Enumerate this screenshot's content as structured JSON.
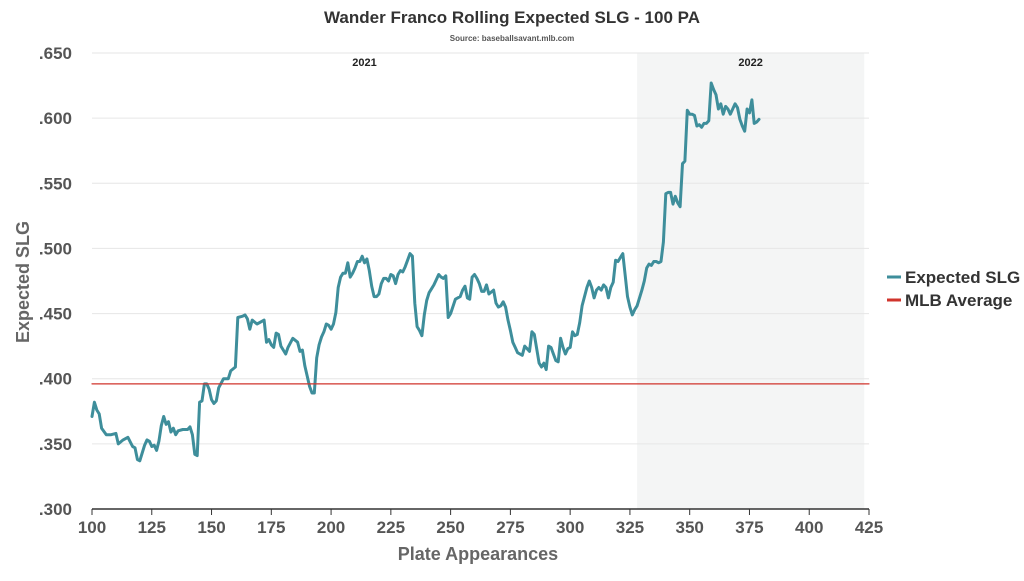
{
  "chart_data": {
    "type": "line",
    "title": "Wander Franco Rolling Expected SLG - 100 PA",
    "subtitle": "Source: baseballsavant.mlb.com",
    "xlabel": "Plate Appearances",
    "ylabel": "Expected SLG",
    "xlim": [
      100,
      425
    ],
    "ylim": [
      0.3,
      0.65
    ],
    "x_ticks": [
      100,
      125,
      150,
      175,
      200,
      225,
      250,
      275,
      300,
      325,
      350,
      375,
      400,
      425
    ],
    "x_tick_labels": [
      "100",
      "125",
      "150",
      "175",
      "200",
      "225",
      "250",
      "275",
      "300",
      "325",
      "350",
      "375",
      "400",
      "425"
    ],
    "y_ticks": [
      0.3,
      0.35,
      0.4,
      0.45,
      0.5,
      0.55,
      0.6,
      0.65
    ],
    "y_tick_labels": [
      ".300",
      ".350",
      ".400",
      ".450",
      ".500",
      ".550",
      ".600",
      ".650"
    ],
    "grid": true,
    "legend": "right",
    "seasons": [
      {
        "label": "2021",
        "start": 100,
        "end": 328,
        "shaded": false
      },
      {
        "label": "2022",
        "start": 328,
        "end": 423,
        "shaded": true
      }
    ],
    "series": [
      {
        "name": "Expected SLG",
        "color": "#3e8e9b",
        "points": [
          [
            100,
            0.371
          ],
          [
            101,
            0.382
          ],
          [
            102,
            0.376
          ],
          [
            103,
            0.373
          ],
          [
            104,
            0.362
          ],
          [
            106,
            0.357
          ],
          [
            108,
            0.357
          ],
          [
            110,
            0.358
          ],
          [
            111,
            0.35
          ],
          [
            113,
            0.353
          ],
          [
            115,
            0.355
          ],
          [
            117,
            0.348
          ],
          [
            118,
            0.347
          ],
          [
            119,
            0.338
          ],
          [
            120,
            0.337
          ],
          [
            122,
            0.349
          ],
          [
            123,
            0.353
          ],
          [
            124,
            0.352
          ],
          [
            125,
            0.348
          ],
          [
            126,
            0.349
          ],
          [
            127,
            0.345
          ],
          [
            128,
            0.352
          ],
          [
            129,
            0.364
          ],
          [
            130,
            0.371
          ],
          [
            131,
            0.365
          ],
          [
            132,
            0.367
          ],
          [
            133,
            0.359
          ],
          [
            134,
            0.362
          ],
          [
            135,
            0.357
          ],
          [
            136,
            0.36
          ],
          [
            138,
            0.361
          ],
          [
            140,
            0.361
          ],
          [
            141,
            0.363
          ],
          [
            142,
            0.357
          ],
          [
            143,
            0.342
          ],
          [
            144,
            0.341
          ],
          [
            145,
            0.382
          ],
          [
            146,
            0.383
          ],
          [
            147,
            0.396
          ],
          [
            148,
            0.396
          ],
          [
            149,
            0.392
          ],
          [
            150,
            0.384
          ],
          [
            151,
            0.381
          ],
          [
            152,
            0.383
          ],
          [
            153,
            0.393
          ],
          [
            155,
            0.4
          ],
          [
            157,
            0.4
          ],
          [
            158,
            0.406
          ],
          [
            160,
            0.409
          ],
          [
            161,
            0.447
          ],
          [
            163,
            0.448
          ],
          [
            164,
            0.449
          ],
          [
            165,
            0.446
          ],
          [
            166,
            0.438
          ],
          [
            167,
            0.445
          ],
          [
            169,
            0.442
          ],
          [
            171,
            0.444
          ],
          [
            172,
            0.445
          ],
          [
            173,
            0.428
          ],
          [
            174,
            0.43
          ],
          [
            175,
            0.426
          ],
          [
            176,
            0.424
          ],
          [
            177,
            0.435
          ],
          [
            178,
            0.434
          ],
          [
            179,
            0.425
          ],
          [
            181,
            0.419
          ],
          [
            182,
            0.424
          ],
          [
            184,
            0.431
          ],
          [
            186,
            0.428
          ],
          [
            187,
            0.421
          ],
          [
            188,
            0.422
          ],
          [
            189,
            0.41
          ],
          [
            190,
            0.402
          ],
          [
            191,
            0.394
          ],
          [
            192,
            0.389
          ],
          [
            193,
            0.389
          ],
          [
            194,
            0.416
          ],
          [
            195,
            0.426
          ],
          [
            196,
            0.432
          ],
          [
            197,
            0.436
          ],
          [
            198,
            0.442
          ],
          [
            199,
            0.441
          ],
          [
            200,
            0.438
          ],
          [
            201,
            0.442
          ],
          [
            202,
            0.451
          ],
          [
            203,
            0.47
          ],
          [
            204,
            0.478
          ],
          [
            205,
            0.481
          ],
          [
            206,
            0.481
          ],
          [
            207,
            0.489
          ],
          [
            208,
            0.478
          ],
          [
            209,
            0.481
          ],
          [
            210,
            0.485
          ],
          [
            211,
            0.49
          ],
          [
            212,
            0.49
          ],
          [
            213,
            0.494
          ],
          [
            214,
            0.489
          ],
          [
            215,
            0.492
          ],
          [
            216,
            0.483
          ],
          [
            217,
            0.471
          ],
          [
            218,
            0.463
          ],
          [
            219,
            0.463
          ],
          [
            220,
            0.465
          ],
          [
            221,
            0.473
          ],
          [
            222,
            0.477
          ],
          [
            223,
            0.477
          ],
          [
            224,
            0.475
          ],
          [
            225,
            0.48
          ],
          [
            226,
            0.479
          ],
          [
            227,
            0.473
          ],
          [
            228,
            0.48
          ],
          [
            229,
            0.483
          ],
          [
            230,
            0.482
          ],
          [
            231,
            0.486
          ],
          [
            232,
            0.491
          ],
          [
            233,
            0.496
          ],
          [
            234,
            0.494
          ],
          [
            235,
            0.458
          ],
          [
            236,
            0.44
          ],
          [
            237,
            0.437
          ],
          [
            238,
            0.433
          ],
          [
            239,
            0.449
          ],
          [
            240,
            0.46
          ],
          [
            241,
            0.466
          ],
          [
            242,
            0.469
          ],
          [
            243,
            0.472
          ],
          [
            244,
            0.476
          ],
          [
            245,
            0.48
          ],
          [
            246,
            0.478
          ],
          [
            247,
            0.477
          ],
          [
            248,
            0.479
          ],
          [
            249,
            0.447
          ],
          [
            250,
            0.45
          ],
          [
            252,
            0.461
          ],
          [
            254,
            0.463
          ],
          [
            255,
            0.468
          ],
          [
            256,
            0.471
          ],
          [
            257,
            0.462
          ],
          [
            258,
            0.461
          ],
          [
            259,
            0.478
          ],
          [
            260,
            0.48
          ],
          [
            261,
            0.477
          ],
          [
            262,
            0.473
          ],
          [
            263,
            0.467
          ],
          [
            264,
            0.467
          ],
          [
            265,
            0.472
          ],
          [
            266,
            0.465
          ],
          [
            268,
            0.468
          ],
          [
            269,
            0.458
          ],
          [
            270,
            0.455
          ],
          [
            271,
            0.456
          ],
          [
            272,
            0.459
          ],
          [
            273,
            0.455
          ],
          [
            274,
            0.445
          ],
          [
            275,
            0.437
          ],
          [
            276,
            0.428
          ],
          [
            277,
            0.424
          ],
          [
            278,
            0.42
          ],
          [
            280,
            0.418
          ],
          [
            281,
            0.425
          ],
          [
            282,
            0.423
          ],
          [
            283,
            0.421
          ],
          [
            284,
            0.436
          ],
          [
            285,
            0.434
          ],
          [
            286,
            0.423
          ],
          [
            287,
            0.412
          ],
          [
            288,
            0.409
          ],
          [
            289,
            0.412
          ],
          [
            290,
            0.407
          ],
          [
            291,
            0.425
          ],
          [
            292,
            0.424
          ],
          [
            293,
            0.419
          ],
          [
            294,
            0.414
          ],
          [
            295,
            0.413
          ],
          [
            296,
            0.431
          ],
          [
            297,
            0.424
          ],
          [
            298,
            0.419
          ],
          [
            299,
            0.423
          ],
          [
            300,
            0.424
          ],
          [
            301,
            0.436
          ],
          [
            302,
            0.433
          ],
          [
            303,
            0.434
          ],
          [
            304,
            0.443
          ],
          [
            305,
            0.456
          ],
          [
            306,
            0.463
          ],
          [
            307,
            0.47
          ],
          [
            308,
            0.475
          ],
          [
            309,
            0.47
          ],
          [
            310,
            0.462
          ],
          [
            311,
            0.468
          ],
          [
            312,
            0.47
          ],
          [
            313,
            0.468
          ],
          [
            314,
            0.472
          ],
          [
            315,
            0.47
          ],
          [
            316,
            0.462
          ],
          [
            317,
            0.47
          ],
          [
            318,
            0.474
          ],
          [
            319,
            0.491
          ],
          [
            320,
            0.49
          ],
          [
            321,
            0.493
          ],
          [
            322,
            0.496
          ],
          [
            323,
            0.48
          ],
          [
            324,
            0.463
          ],
          [
            325,
            0.455
          ],
          [
            326,
            0.449
          ],
          [
            327,
            0.453
          ],
          [
            328,
            0.456
          ],
          [
            329,
            0.462
          ],
          [
            330,
            0.468
          ],
          [
            331,
            0.475
          ],
          [
            332,
            0.485
          ],
          [
            333,
            0.488
          ],
          [
            334,
            0.487
          ],
          [
            335,
            0.49
          ],
          [
            336,
            0.49
          ],
          [
            337,
            0.489
          ],
          [
            338,
            0.49
          ],
          [
            339,
            0.505
          ],
          [
            340,
            0.542
          ],
          [
            341,
            0.543
          ],
          [
            342,
            0.543
          ],
          [
            343,
            0.534
          ],
          [
            344,
            0.54
          ],
          [
            345,
            0.535
          ],
          [
            346,
            0.532
          ],
          [
            347,
            0.565
          ],
          [
            348,
            0.567
          ],
          [
            349,
            0.606
          ],
          [
            350,
            0.603
          ],
          [
            351,
            0.603
          ],
          [
            352,
            0.602
          ],
          [
            353,
            0.594
          ],
          [
            354,
            0.595
          ],
          [
            355,
            0.593
          ],
          [
            356,
            0.596
          ],
          [
            357,
            0.596
          ],
          [
            358,
            0.598
          ],
          [
            359,
            0.627
          ],
          [
            360,
            0.622
          ],
          [
            361,
            0.618
          ],
          [
            362,
            0.607
          ],
          [
            363,
            0.611
          ],
          [
            364,
            0.603
          ],
          [
            365,
            0.609
          ],
          [
            366,
            0.607
          ],
          [
            367,
            0.603
          ],
          [
            368,
            0.607
          ],
          [
            369,
            0.611
          ],
          [
            370,
            0.608
          ],
          [
            371,
            0.599
          ],
          [
            372,
            0.594
          ],
          [
            373,
            0.59
          ],
          [
            374,
            0.607
          ],
          [
            375,
            0.604
          ],
          [
            376,
            0.614
          ],
          [
            377,
            0.596
          ],
          [
            378,
            0.597
          ],
          [
            379,
            0.599
          ]
        ]
      },
      {
        "name": "MLB Average",
        "color": "#d0342c",
        "points": [
          [
            100,
            0.396
          ],
          [
            425,
            0.396
          ]
        ]
      }
    ]
  }
}
